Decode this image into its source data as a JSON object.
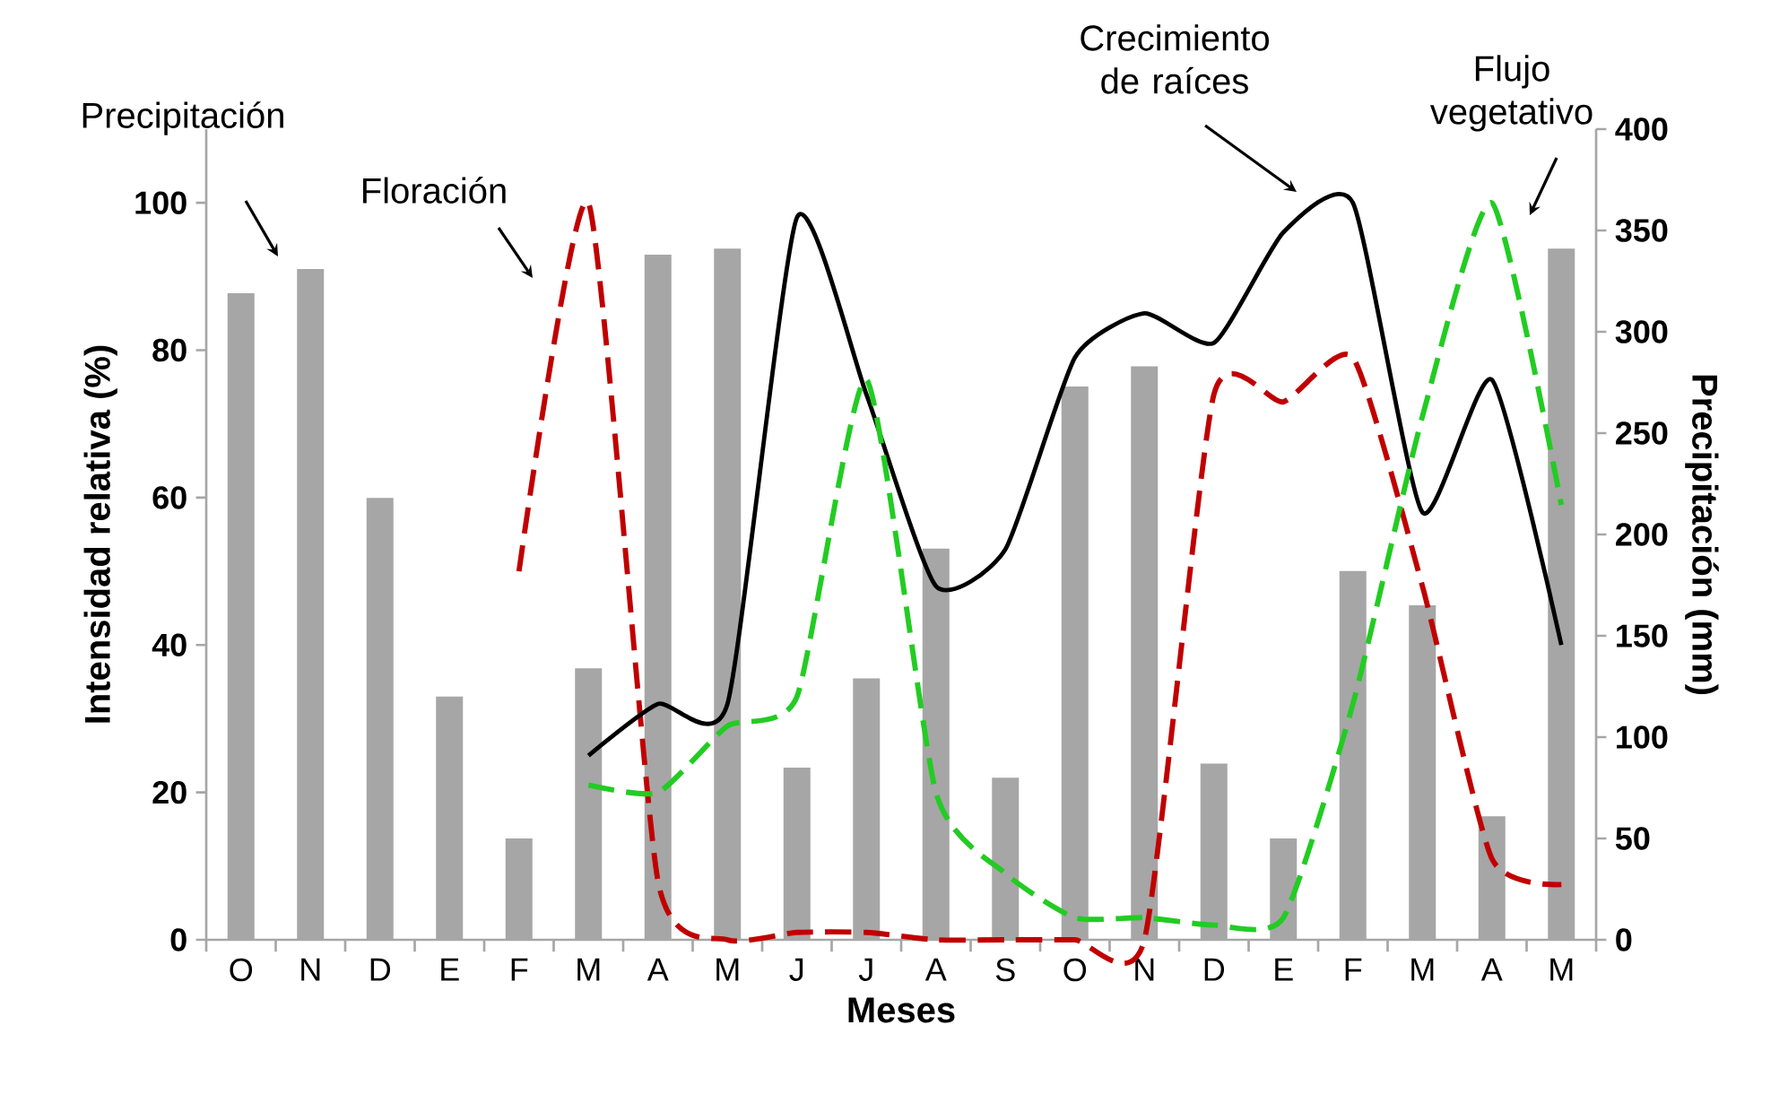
{
  "chart_data": {
    "type": "bar",
    "categories": [
      "O",
      "N",
      "D",
      "E",
      "F",
      "M",
      "A",
      "M",
      "J",
      "J",
      "A",
      "S",
      "O",
      "N",
      "D",
      "E",
      "F",
      "M",
      "A",
      "M"
    ],
    "xlabel": "Meses",
    "ylabel": "Intensidad relativa (%)",
    "y2label": "Precipitación (mm)",
    "ylim": [
      0,
      110
    ],
    "yticks": [
      0,
      20,
      40,
      60,
      80,
      100
    ],
    "y2lim": [
      0,
      400
    ],
    "y2ticks": [
      0,
      50,
      100,
      150,
      200,
      250,
      300,
      350,
      400
    ],
    "series": [
      {
        "axis": "y2",
        "color": "#a6a6a6",
        "values": [
          319,
          331,
          218,
          120,
          50,
          134,
          338,
          341,
          85,
          129,
          193,
          80,
          273,
          283,
          87,
          50,
          182,
          165,
          61,
          341
        ]
      },
      {
        "type": "line",
        "line_style": "dashed",
        "color": "#c00000",
        "values": [
          null,
          null,
          null,
          null,
          50,
          100,
          8,
          0,
          1,
          1,
          0,
          0,
          0,
          0,
          74,
          73,
          79,
          48,
          11,
          7.5
        ]
      },
      {
        "type": "line",
        "line_style": "solid",
        "color": "#000000",
        "values": [
          null,
          null,
          null,
          null,
          null,
          25,
          32,
          32,
          98,
          74,
          48,
          53,
          79,
          85,
          81,
          96,
          100,
          58,
          76,
          40
        ]
      },
      {
        "type": "line",
        "line_style": "dashed",
        "color": "#22cc22",
        "values": [
          null,
          null,
          null,
          null,
          null,
          21,
          20,
          29,
          33,
          76,
          20,
          9,
          3,
          3,
          2,
          3,
          32,
          71,
          100,
          59
        ]
      }
    ],
    "annotations": [
      "Precipitación",
      "Floración",
      "Crecimiento de raíces",
      "Flujo vegetativo"
    ],
    "grid": false
  }
}
